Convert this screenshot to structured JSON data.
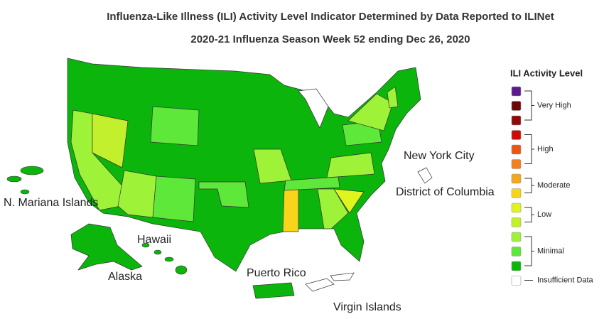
{
  "header": {
    "title": "Influenza-Like Illness (ILI) Activity Level Indicator Determined by Data Reported to ILINet",
    "subtitle": "2020-21 Influenza Season Week 52 ending Dec 26, 2020"
  },
  "map": {
    "labels": [
      "New York City",
      "District of Columbia",
      "N. Mariana Islands",
      "Hawaii",
      "Alaska",
      "Puerto Rico",
      "Virgin Islands"
    ]
  },
  "legend": {
    "title": "ILI Activity Level",
    "groups": [
      {
        "label": "Very High",
        "colors": [
          "#5b1a8e",
          "#6e0808",
          "#8e0b0b"
        ]
      },
      {
        "label": "High",
        "colors": [
          "#cc0a0a",
          "#ee5510",
          "#f2801e"
        ]
      },
      {
        "label": "Moderate",
        "colors": [
          "#f4a621",
          "#f8d41a"
        ]
      },
      {
        "label": "Low",
        "colors": [
          "#def51e",
          "#c2f02c"
        ]
      },
      {
        "label": "Minimal",
        "colors": [
          "#9ef338",
          "#5ee83a",
          "#0cb50c"
        ]
      }
    ],
    "insufficient": {
      "label": "Insufficient Data",
      "color": "#ffffff"
    }
  }
}
